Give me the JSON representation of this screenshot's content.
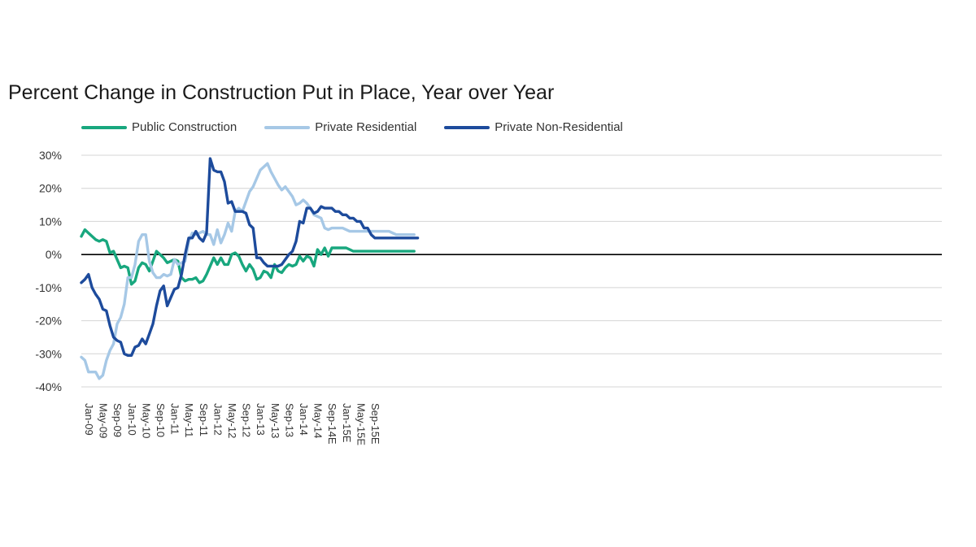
{
  "chart_data": {
    "type": "line",
    "title": "Percent Change in Construction Put in Place, Year over Year",
    "xlabel": "",
    "ylabel": "",
    "ylim": [
      -40,
      30
    ],
    "yticks": [
      "30%",
      "20%",
      "10%",
      "0%",
      "-10%",
      "-20%",
      "-30%",
      "-40%"
    ],
    "ytick_values": [
      30,
      20,
      10,
      0,
      -10,
      -20,
      -30,
      -40
    ],
    "xtick_labels": [
      "Jan-09",
      "May-09",
      "Sep-09",
      "Jan-10",
      "May-10",
      "Sep-10",
      "Jan-11",
      "May-11",
      "Sep-11",
      "Jan-12",
      "May-12",
      "Sep-12",
      "Jan-13",
      "May-13",
      "Sep-13",
      "Jan-14",
      "May-14",
      "Sep-14E",
      "Jan-15E",
      "May-15E",
      "Sep-15E"
    ],
    "legend_position": "top",
    "grid": true,
    "series": [
      {
        "name": "Public Construction",
        "color": "#18a77e",
        "values": [
          5.5,
          7.5,
          6.5,
          5.5,
          4.5,
          4,
          4.5,
          4,
          0.5,
          1,
          -1.5,
          -4,
          -3.5,
          -4,
          -9,
          -8,
          -4,
          -2.5,
          -3,
          -5,
          -2,
          1,
          0,
          -1,
          -2.5,
          -2,
          -1.5,
          -2,
          -7,
          -8,
          -7.5,
          -7.5,
          -7,
          -8.5,
          -8,
          -6,
          -3.5,
          -1,
          -3,
          -1,
          -3,
          -3,
          0,
          0.5,
          -0.5,
          -3,
          -5,
          -3,
          -4.5,
          -7.5,
          -7,
          -5,
          -5.5,
          -7,
          -3,
          -5,
          -5.5,
          -4,
          -3,
          -3.5,
          -3,
          -0.5,
          -2,
          -0.5,
          -1,
          -3.5,
          1.5,
          0,
          2,
          -0.5,
          2,
          2,
          2,
          2,
          2,
          1.5,
          1,
          1,
          1,
          1,
          1,
          1,
          1,
          1,
          1,
          1,
          1,
          1,
          1,
          1,
          1,
          1,
          1,
          1
        ]
      },
      {
        "name": "Private Residential",
        "color": "#a6c8e6",
        "values": [
          -31,
          -32,
          -35.5,
          -35.5,
          -35.5,
          -37.5,
          -36.5,
          -32,
          -29,
          -27,
          -21,
          -19,
          -15,
          -7,
          -7,
          -3,
          4,
          6,
          6,
          -2,
          -5.5,
          -7,
          -7,
          -6,
          -6.5,
          -6,
          -1.5,
          -3,
          -2.5,
          -2,
          4,
          6.5,
          6,
          6.5,
          7,
          6,
          6,
          3,
          7.5,
          3.5,
          6,
          9.5,
          7,
          13,
          14,
          13,
          16,
          19,
          20.5,
          23,
          25.5,
          26.5,
          27.5,
          25,
          23,
          21,
          19.5,
          20.5,
          19,
          17.5,
          15,
          15.5,
          16.5,
          15.5,
          14,
          12,
          11.5,
          11,
          8,
          7.5,
          8,
          8,
          8,
          8,
          7.5,
          7,
          7,
          7,
          7,
          7,
          7,
          7,
          7,
          7,
          7,
          7,
          7,
          6.5,
          6,
          6,
          6,
          6,
          6,
          6
        ]
      },
      {
        "name": "Private Non-Residential",
        "color": "#1d4b9c",
        "values": [
          -8.5,
          -7.5,
          -6,
          -10,
          -12,
          -13.5,
          -16.5,
          -17,
          -21.5,
          -25,
          -26,
          -26.5,
          -30,
          -30.5,
          -30.5,
          -28,
          -27.5,
          -25.5,
          -27,
          -24,
          -21,
          -15.5,
          -11,
          -9.5,
          -15.5,
          -13,
          -10.5,
          -10,
          -6,
          0,
          5,
          5,
          7,
          5,
          4,
          6.5,
          29,
          25.5,
          25,
          25,
          22,
          15.5,
          16,
          13,
          13,
          13,
          12.5,
          9,
          8,
          -1,
          -1,
          -2.5,
          -3.5,
          -3.5,
          -3.5,
          -3.5,
          -3,
          -1.5,
          0,
          1,
          4,
          10,
          9.5,
          14,
          14,
          12.5,
          13,
          14.5,
          14,
          14,
          14,
          13,
          13,
          12,
          12,
          11,
          11,
          10,
          10,
          8,
          8,
          6,
          5,
          5,
          5,
          5,
          5,
          5,
          5,
          5,
          5,
          5,
          5,
          5,
          5
        ]
      }
    ]
  }
}
